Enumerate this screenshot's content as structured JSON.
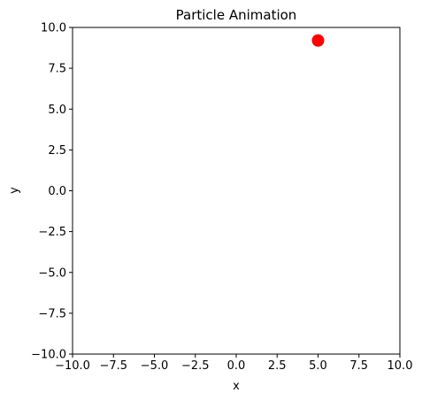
{
  "chart_data": {
    "type": "scatter",
    "title": "Particle Animation",
    "xlabel": "x",
    "ylabel": "y",
    "xlim": [
      -10,
      10
    ],
    "ylim": [
      -10,
      10
    ],
    "xticks": [
      -10,
      -7.5,
      -5,
      -2.5,
      0,
      2.5,
      5,
      7.5,
      10
    ],
    "yticks": [
      -10,
      -7.5,
      -5,
      -2.5,
      0,
      2.5,
      5,
      7.5,
      10
    ],
    "xtick_labels": [
      "−10.0",
      "−7.5",
      "−5.0",
      "−2.5",
      "0.0",
      "2.5",
      "5.0",
      "7.5",
      "10.0"
    ],
    "ytick_labels": [
      "−10.0",
      "−7.5",
      "−5.0",
      "−2.5",
      "0.0",
      "2.5",
      "5.0",
      "7.5",
      "10.0"
    ],
    "grid": false,
    "legend": "none",
    "series": [
      {
        "points": [
          {
            "x": 5.0,
            "y": 9.2
          }
        ],
        "color": "#ff0000",
        "marker": "circle"
      }
    ]
  }
}
